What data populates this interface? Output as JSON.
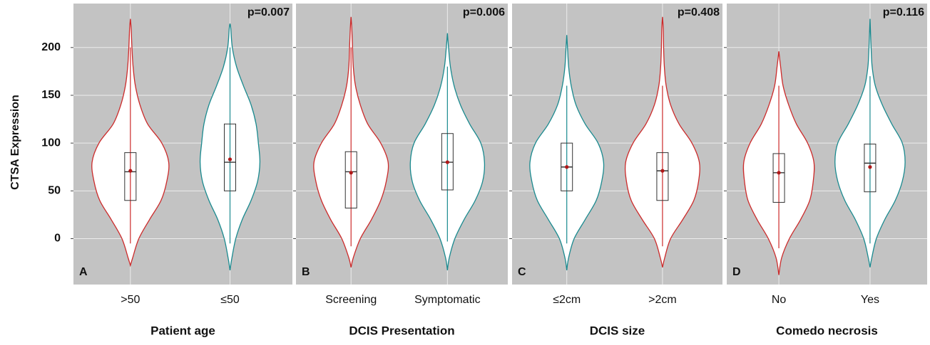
{
  "chart_data": [
    {
      "type": "violin",
      "panel_label": "A",
      "p_value": "p=0.007",
      "y_label": "CTSA Expression",
      "x_label": "Patient age",
      "categories": [
        ">50",
        "≤50"
      ],
      "ylim": [
        -48,
        246
      ],
      "yticks": [
        0,
        50,
        100,
        150,
        200
      ],
      "grid": true,
      "density_y": [
        -40,
        -20,
        0,
        20,
        40,
        60,
        80,
        100,
        120,
        140,
        160,
        180,
        200,
        220,
        240
      ],
      "violins": [
        {
          "color": "#cc2a2a",
          "min": -28,
          "max": 230,
          "q1": 40,
          "median": 70,
          "q3": 90,
          "mean": 71,
          "whisker_low": -5,
          "whisker_high": 200,
          "density": [
            null,
            0.06,
            0.22,
            0.5,
            0.8,
            0.95,
            1.0,
            0.82,
            0.45,
            0.25,
            0.13,
            0.07,
            0.04,
            0.02,
            null
          ]
        },
        {
          "color": "#1a8a8f",
          "min": -33,
          "max": 225,
          "q1": 50,
          "median": 80,
          "q3": 120,
          "mean": 83,
          "whisker_low": -5,
          "whisker_high": 200,
          "density": [
            null,
            0.05,
            0.15,
            0.32,
            0.55,
            0.72,
            0.78,
            0.74,
            0.68,
            0.55,
            0.35,
            0.17,
            0.06,
            0.02,
            null
          ]
        }
      ]
    },
    {
      "type": "violin",
      "panel_label": "B",
      "p_value": "p=0.006",
      "x_label": "DCIS Presentation",
      "categories": [
        "Screening",
        "Symptomatic"
      ],
      "ylim": [
        -48,
        246
      ],
      "yticks": [
        0,
        50,
        100,
        150,
        200
      ],
      "grid": true,
      "density_y": [
        -40,
        -20,
        0,
        20,
        40,
        60,
        80,
        100,
        120,
        140,
        160,
        180,
        200,
        220,
        240
      ],
      "violins": [
        {
          "color": "#cc2a2a",
          "min": -30,
          "max": 232,
          "q1": 32,
          "median": 70,
          "q3": 91,
          "mean": 69,
          "whisker_low": -8,
          "whisker_high": 200,
          "density": [
            null,
            0.06,
            0.25,
            0.55,
            0.8,
            0.95,
            1.0,
            0.8,
            0.45,
            0.25,
            0.12,
            0.06,
            0.04,
            0.02,
            null
          ]
        },
        {
          "color": "#1a8a8f",
          "min": -33,
          "max": 215,
          "q1": 51,
          "median": 80,
          "q3": 110,
          "mean": 80,
          "whisker_low": -3,
          "whisker_high": 180,
          "density": [
            null,
            0.05,
            0.2,
            0.45,
            0.75,
            0.95,
            1.0,
            0.9,
            0.6,
            0.35,
            0.18,
            0.08,
            0.03,
            null,
            null
          ]
        }
      ]
    },
    {
      "type": "violin",
      "panel_label": "C",
      "p_value": "p=0.408",
      "x_label": "DCIS size",
      "categories": [
        "≤2cm",
        ">2cm"
      ],
      "ylim": [
        -48,
        246
      ],
      "yticks": [
        0,
        50,
        100,
        150,
        200
      ],
      "grid": true,
      "density_y": [
        -40,
        -20,
        0,
        20,
        40,
        60,
        80,
        100,
        120,
        140,
        160,
        180,
        200,
        220,
        240
      ],
      "violins": [
        {
          "color": "#1a8a8f",
          "min": -33,
          "max": 213,
          "q1": 50,
          "median": 75,
          "q3": 100,
          "mean": 75,
          "whisker_low": -5,
          "whisker_high": 160,
          "density": [
            null,
            0.05,
            0.2,
            0.5,
            0.8,
            0.95,
            1.0,
            0.85,
            0.5,
            0.25,
            0.12,
            0.05,
            0.02,
            null,
            null
          ]
        },
        {
          "color": "#cc2a2a",
          "min": -30,
          "max": 232,
          "q1": 40,
          "median": 71,
          "q3": 90,
          "mean": 71,
          "whisker_low": -8,
          "whisker_high": 160,
          "density": [
            null,
            0.06,
            0.22,
            0.55,
            0.85,
            0.98,
            1.0,
            0.8,
            0.45,
            0.22,
            0.1,
            0.05,
            0.03,
            0.02,
            null
          ]
        }
      ]
    },
    {
      "type": "violin",
      "panel_label": "D",
      "p_value": "p=0.116",
      "x_label": "Comedo necrosis",
      "categories": [
        "No",
        "Yes"
      ],
      "ylim": [
        -48,
        246
      ],
      "yticks": [
        0,
        50,
        100,
        150,
        200
      ],
      "grid": true,
      "density_y": [
        -40,
        -20,
        0,
        20,
        40,
        60,
        80,
        100,
        120,
        140,
        160,
        180,
        200,
        220,
        240
      ],
      "violins": [
        {
          "color": "#cc2a2a",
          "min": -38,
          "max": 196,
          "q1": 38,
          "median": 69,
          "q3": 89,
          "mean": 69,
          "whisker_low": -10,
          "whisker_high": 160,
          "density": [
            null,
            0.08,
            0.3,
            0.62,
            0.88,
            0.98,
            1.0,
            0.82,
            0.5,
            0.28,
            0.12,
            0.05,
            null,
            null,
            null
          ]
        },
        {
          "color": "#1a8a8f",
          "min": -30,
          "max": 230,
          "q1": 49,
          "median": 79,
          "q3": 99,
          "mean": 75,
          "whisker_low": -5,
          "whisker_high": 170,
          "density": [
            null,
            0.05,
            0.18,
            0.42,
            0.72,
            0.92,
            1.0,
            0.92,
            0.62,
            0.35,
            0.15,
            0.06,
            0.03,
            0.01,
            null
          ]
        }
      ]
    }
  ]
}
